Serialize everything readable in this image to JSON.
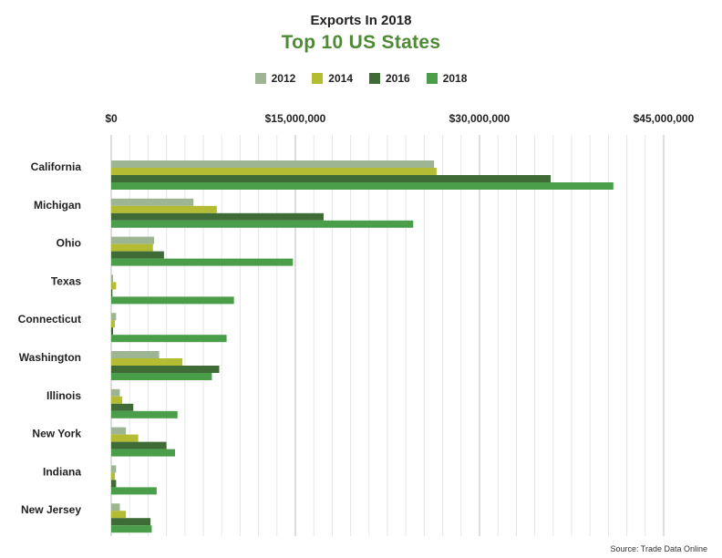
{
  "header": {
    "subtitle": "Exports In 2018",
    "title": "Top 10 US States"
  },
  "source": "Source: Trade Data Online",
  "chart_data": {
    "type": "bar",
    "orientation": "horizontal",
    "title": "Top 10 US States",
    "subtitle": "Exports In 2018",
    "xlim": [
      0,
      45000000
    ],
    "x_ticks": [
      0,
      15000000,
      30000000,
      45000000
    ],
    "x_tick_labels": [
      "$0",
      "$15,000,000",
      "$30,000,000",
      "$45,000,000"
    ],
    "x_axis_position": "top",
    "grid": true,
    "legend_placement": "top-center",
    "categories": [
      "California",
      "Michigan",
      "Ohio",
      "Texas",
      "Connecticut",
      "Washington",
      "Illinois",
      "New York",
      "Indiana",
      "New Jersey"
    ],
    "series": [
      {
        "name": "2012",
        "color": "#9db592",
        "values": [
          26300000,
          6700000,
          3500000,
          150000,
          400000,
          3900000,
          700000,
          1200000,
          400000,
          700000
        ]
      },
      {
        "name": "2014",
        "color": "#b3bc32",
        "values": [
          26500000,
          8600000,
          3400000,
          400000,
          300000,
          5800000,
          900000,
          2200000,
          300000,
          1200000
        ]
      },
      {
        "name": "2016",
        "color": "#3f6b36",
        "values": [
          35800000,
          17300000,
          4300000,
          100000,
          150000,
          8800000,
          1800000,
          4500000,
          400000,
          3200000
        ]
      },
      {
        "name": "2018",
        "color": "#4a9e4a",
        "values": [
          40900000,
          24600000,
          14800000,
          10000000,
          9400000,
          8200000,
          5400000,
          5200000,
          3700000,
          3300000
        ]
      }
    ]
  }
}
